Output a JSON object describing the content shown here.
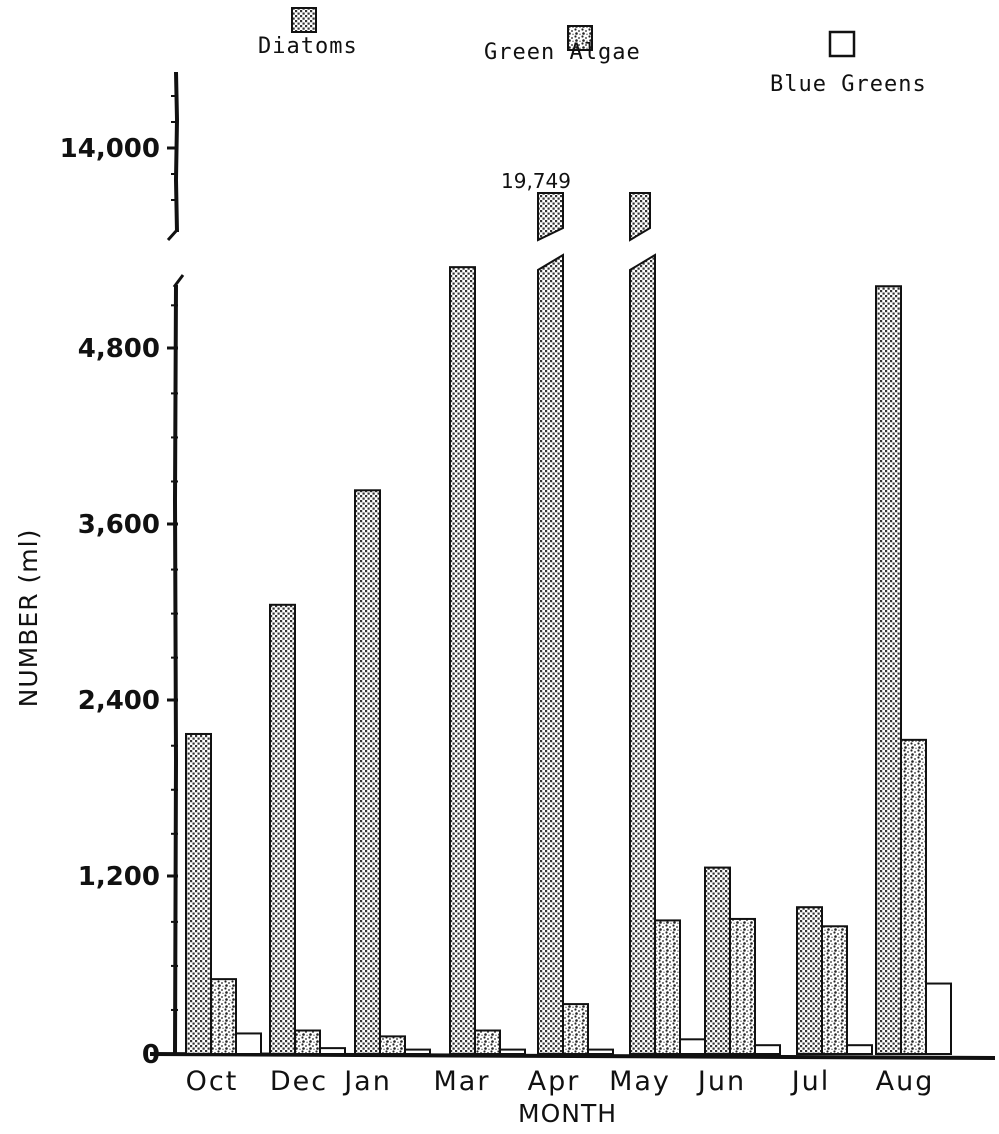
{
  "chart_data": {
    "type": "bar",
    "xlabel": "MONTH",
    "ylabel": "NUMBER (ml)",
    "categories": [
      "Oct",
      "Dec",
      "Jan",
      "Mar",
      "Apr",
      "May",
      "Jun",
      "Jul",
      "Aug"
    ],
    "series": [
      {
        "name": "Diatoms",
        "values": [
          2180,
          3060,
          3840,
          5360,
          19749,
          5420,
          1270,
          1000,
          5230
        ]
      },
      {
        "name": "Green Algae",
        "values": [
          510,
          160,
          120,
          160,
          340,
          910,
          920,
          870,
          2140
        ]
      },
      {
        "name": "Blue Greens",
        "values": [
          140,
          40,
          30,
          30,
          30,
          100,
          60,
          60,
          480
        ]
      }
    ],
    "y_ticks": [
      "0",
      "1,200",
      "2,400",
      "3,600",
      "4,800",
      "14,000"
    ],
    "ylim": [
      0,
      14000
    ],
    "axis_break": true,
    "broken_bars": [
      "Mar",
      "Apr",
      "May"
    ],
    "annotations": [
      {
        "text": "19,749",
        "category": "Apr"
      }
    ],
    "grid": false,
    "legend_position": "top",
    "colors": {
      "ink": "#111111",
      "background": "#ffffff"
    }
  }
}
